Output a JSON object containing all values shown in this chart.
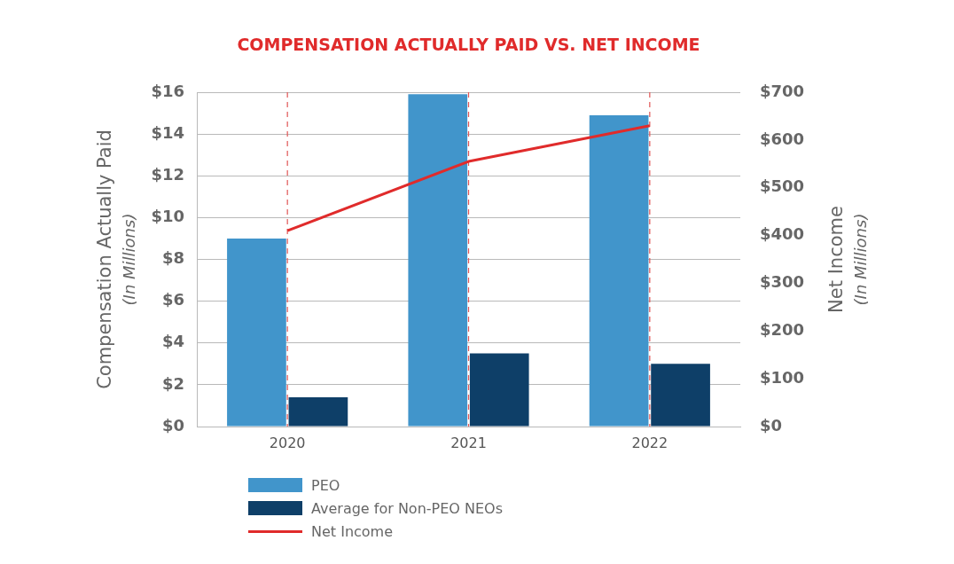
{
  "chart_data": {
    "type": "bar",
    "title": "COMPENSATION ACTUALLY PAID VS. NET INCOME",
    "ylabel": "Compensation Actually Paid (In Millions)",
    "y2label": "Net Income (In Millions)",
    "categories": [
      "2020",
      "2021",
      "2022"
    ],
    "series": [
      {
        "name": "PEO",
        "color": "#4195cb",
        "values": [
          9.0,
          15.9,
          14.9
        ]
      },
      {
        "name": "Average for Non-PEO NEOs",
        "color": "#0e3f68",
        "values": [
          1.4,
          3.5,
          3.0
        ]
      },
      {
        "name": "Net Income",
        "type": "line",
        "axis": "y2",
        "color": "#e02b2b",
        "values": [
          410,
          555,
          630
        ]
      }
    ],
    "ylim": [
      0,
      16
    ],
    "yticks": [
      {
        "value": 0,
        "label": "$0"
      },
      {
        "value": 2,
        "label": "$2"
      },
      {
        "value": 4,
        "label": "$4"
      },
      {
        "value": 6,
        "label": "$6"
      },
      {
        "value": 8,
        "label": "$8"
      },
      {
        "value": 10,
        "label": "$10"
      },
      {
        "value": 12,
        "label": "$12"
      },
      {
        "value": 14,
        "label": "$14"
      },
      {
        "value": 16,
        "label": "$16"
      }
    ],
    "y2lim": [
      0,
      700
    ],
    "y2ticks": [
      {
        "value": 0,
        "label": "$0"
      },
      {
        "value": 100,
        "label": "$100"
      },
      {
        "value": 200,
        "label": "$200"
      },
      {
        "value": 300,
        "label": "$300"
      },
      {
        "value": 400,
        "label": "$400"
      },
      {
        "value": 500,
        "label": "$500"
      },
      {
        "value": 600,
        "label": "$600"
      },
      {
        "value": 700,
        "label": "$700"
      }
    ],
    "ref_lines": [
      {
        "axis": "x",
        "value": "2020",
        "color": "#e05555",
        "line_style": "dashed"
      },
      {
        "axis": "x",
        "value": "2021",
        "color": "#e05555",
        "line_style": "dashed"
      },
      {
        "axis": "x",
        "value": "2022",
        "color": "#e05555",
        "line_style": "dashed"
      }
    ],
    "grid": "y",
    "legend": "bottom",
    "marker": "none"
  }
}
